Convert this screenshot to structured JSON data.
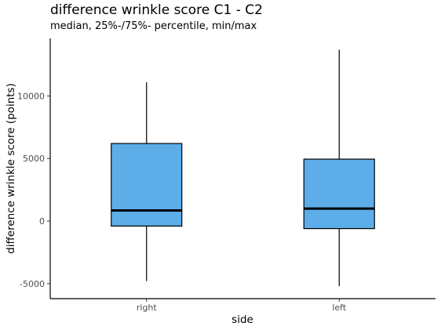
{
  "chart_data": {
    "type": "box",
    "title": "difference wrinkle score C1 - C2",
    "subtitle": "median, 25%-/75%- percentile, min/max",
    "xlabel": "side",
    "ylabel": "difference wrinkle score (points)",
    "categories": [
      "right",
      "left"
    ],
    "boxes": [
      {
        "category": "right",
        "min": -4800,
        "q1": -400,
        "median": 850,
        "q3": 6200,
        "max": 11100
      },
      {
        "category": "left",
        "min": -5200,
        "q1": -600,
        "median": 1000,
        "q3": 4950,
        "max": 13700
      }
    ],
    "yticks": [
      -5000,
      0,
      5000,
      10000
    ],
    "ylim": [
      -6200,
      14600
    ],
    "grid": false,
    "box_color": "#5dade9",
    "outline_color": "#000000"
  }
}
